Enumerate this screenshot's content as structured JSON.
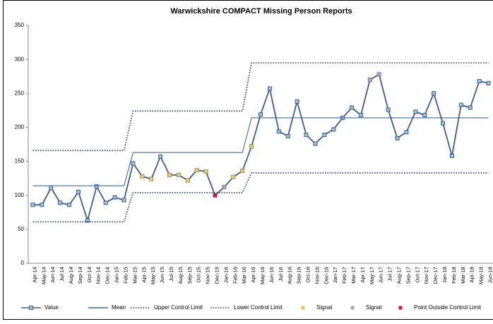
{
  "chart_data": {
    "type": "line",
    "title": "Warwickshire COMPACT Missing Person Reports",
    "categories": [
      "Apr-14",
      "May-14",
      "Jun-14",
      "Jul-14",
      "Aug-14",
      "Sep-14",
      "Oct-14",
      "Nov-14",
      "Dec-14",
      "Jan-15",
      "Feb-15",
      "Mar-15",
      "Apr-15",
      "May-15",
      "Jun-15",
      "Jul-15",
      "Aug-15",
      "Sep-15",
      "Oct-15",
      "Nov-15",
      "Dec-15",
      "Jan-16",
      "Feb-16",
      "Mar-16",
      "Apr-16",
      "May-16",
      "Jun-16",
      "Jul-16",
      "Aug-16",
      "Sep-16",
      "Oct-16",
      "Nov-16",
      "Dec-16",
      "Jan-17",
      "Feb-17",
      "Mar-17",
      "Apr-17",
      "May-17",
      "Jun-17",
      "Jul-17",
      "Aug-17",
      "Sep-17",
      "Oct-17",
      "Nov-17",
      "Dec-17",
      "Jan-18",
      "Feb-18",
      "Mar-18",
      "Apr-18",
      "May-18",
      "Jun-18"
    ],
    "series": [
      {
        "name": "Value",
        "color": "#3a5f8f",
        "line": "solid",
        "marker": true,
        "values": [
          86,
          86,
          111,
          89,
          86,
          105,
          63,
          113,
          89,
          97,
          93,
          147,
          128,
          124,
          157,
          130,
          130,
          122,
          137,
          135,
          100,
          112,
          127,
          136,
          172,
          219,
          257,
          194,
          187,
          238,
          189,
          176,
          189,
          197,
          214,
          229,
          218,
          270,
          278,
          226,
          184,
          193,
          223,
          218,
          250,
          206,
          158,
          233,
          229,
          268,
          265
        ]
      },
      {
        "name": "Mean",
        "color": "#3a6ea5",
        "line": "solid",
        "marker": false,
        "values": [
          114,
          114,
          114,
          114,
          114,
          114,
          114,
          114,
          114,
          114,
          114,
          163,
          163,
          163,
          163,
          163,
          163,
          163,
          163,
          163,
          163,
          163,
          163,
          163,
          214,
          214,
          214,
          214,
          214,
          214,
          214,
          214,
          214,
          214,
          214,
          214,
          214,
          214,
          214,
          214,
          214,
          214,
          214,
          214,
          214,
          214,
          214,
          214,
          214,
          214,
          214
        ]
      },
      {
        "name": "Upper Control Limit",
        "color": "#1f3864",
        "line": "dotted",
        "marker": false,
        "values": [
          166,
          166,
          166,
          166,
          166,
          166,
          166,
          166,
          166,
          166,
          166,
          224,
          224,
          224,
          224,
          224,
          224,
          224,
          224,
          224,
          224,
          224,
          224,
          224,
          295,
          295,
          295,
          295,
          295,
          295,
          295,
          295,
          295,
          295,
          295,
          295,
          295,
          295,
          295,
          295,
          295,
          295,
          295,
          295,
          295,
          295,
          295,
          295,
          295,
          295,
          295
        ]
      },
      {
        "name": "Lower Control Limit",
        "color": "#1f3864",
        "line": "dotted",
        "marker": false,
        "values": [
          61,
          61,
          61,
          61,
          61,
          61,
          61,
          61,
          61,
          61,
          61,
          104,
          104,
          104,
          104,
          104,
          104,
          104,
          104,
          104,
          104,
          104,
          104,
          104,
          133,
          133,
          133,
          133,
          133,
          133,
          133,
          133,
          133,
          133,
          133,
          133,
          133,
          133,
          133,
          133,
          133,
          133,
          133,
          133,
          133,
          133,
          133,
          133,
          133,
          133,
          133
        ]
      },
      {
        "name": "Signal",
        "color": "#f2c94c",
        "line": "none",
        "marker": true,
        "values": [
          null,
          null,
          null,
          null,
          null,
          null,
          null,
          null,
          null,
          null,
          null,
          null,
          128,
          124,
          null,
          130,
          130,
          122,
          137,
          135,
          null,
          null,
          127,
          136,
          172,
          null,
          null,
          null,
          null,
          null,
          null,
          null,
          null,
          null,
          null,
          null,
          null,
          null,
          null,
          null,
          null,
          null,
          null,
          null,
          null,
          null,
          null,
          null,
          null,
          null,
          null
        ]
      },
      {
        "name": "Signal",
        "color": "#b3a2b8",
        "line": "none",
        "marker": true,
        "values": [
          null,
          null,
          null,
          null,
          null,
          null,
          null,
          null,
          null,
          null,
          null,
          null,
          null,
          null,
          null,
          null,
          null,
          null,
          null,
          null,
          null,
          112,
          null,
          null,
          null,
          null,
          null,
          null,
          null,
          null,
          null,
          null,
          null,
          null,
          null,
          null,
          null,
          270,
          278,
          null,
          null,
          null,
          null,
          null,
          null,
          null,
          null,
          null,
          null,
          null,
          null
        ]
      },
      {
        "name": "Point Outside Control Limit",
        "color": "#e0102f",
        "line": "none",
        "marker": true,
        "values": [
          null,
          null,
          null,
          null,
          null,
          null,
          null,
          null,
          null,
          null,
          null,
          null,
          null,
          null,
          null,
          null,
          null,
          null,
          null,
          null,
          100,
          null,
          null,
          null,
          null,
          null,
          null,
          null,
          null,
          null,
          null,
          null,
          null,
          null,
          null,
          null,
          null,
          null,
          null,
          null,
          null,
          null,
          null,
          null,
          null,
          null,
          null,
          null,
          null,
          null,
          null
        ]
      }
    ],
    "ylim": [
      0,
      350
    ],
    "yticks": [
      0,
      50,
      100,
      150,
      200,
      250,
      300,
      350
    ],
    "legend": "bottom"
  }
}
